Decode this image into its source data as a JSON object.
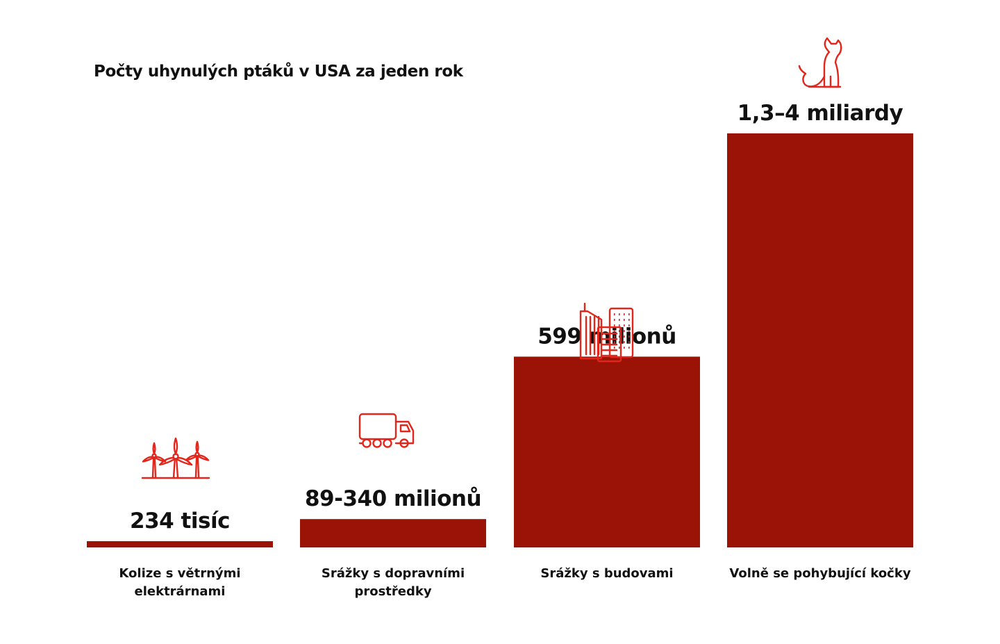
{
  "chart_data": {
    "type": "bar",
    "title": "Počty uhynulých ptáků v USA za jeden rok",
    "categories": [
      [
        "Kolize s větrnými",
        "elektrárnami"
      ],
      [
        "Srážky s dopravními",
        "prostředky"
      ],
      [
        "Srážky s budovami"
      ],
      [
        "Volně se pohybující kočky"
      ]
    ],
    "values": [
      234000,
      89000000,
      599000000,
      1300000000
    ],
    "value_labels": [
      "234 tisíc",
      "89-340 milionů",
      "599 milionů",
      "1,3–4 miliardy"
    ],
    "icons": [
      "wind-turbine-icon",
      "truck-icon",
      "buildings-icon",
      "cat-icon"
    ],
    "ylim": [
      0,
      1300000000
    ],
    "grid": false,
    "bar_color": "#9a1306",
    "icon_color": "#e2261b"
  }
}
